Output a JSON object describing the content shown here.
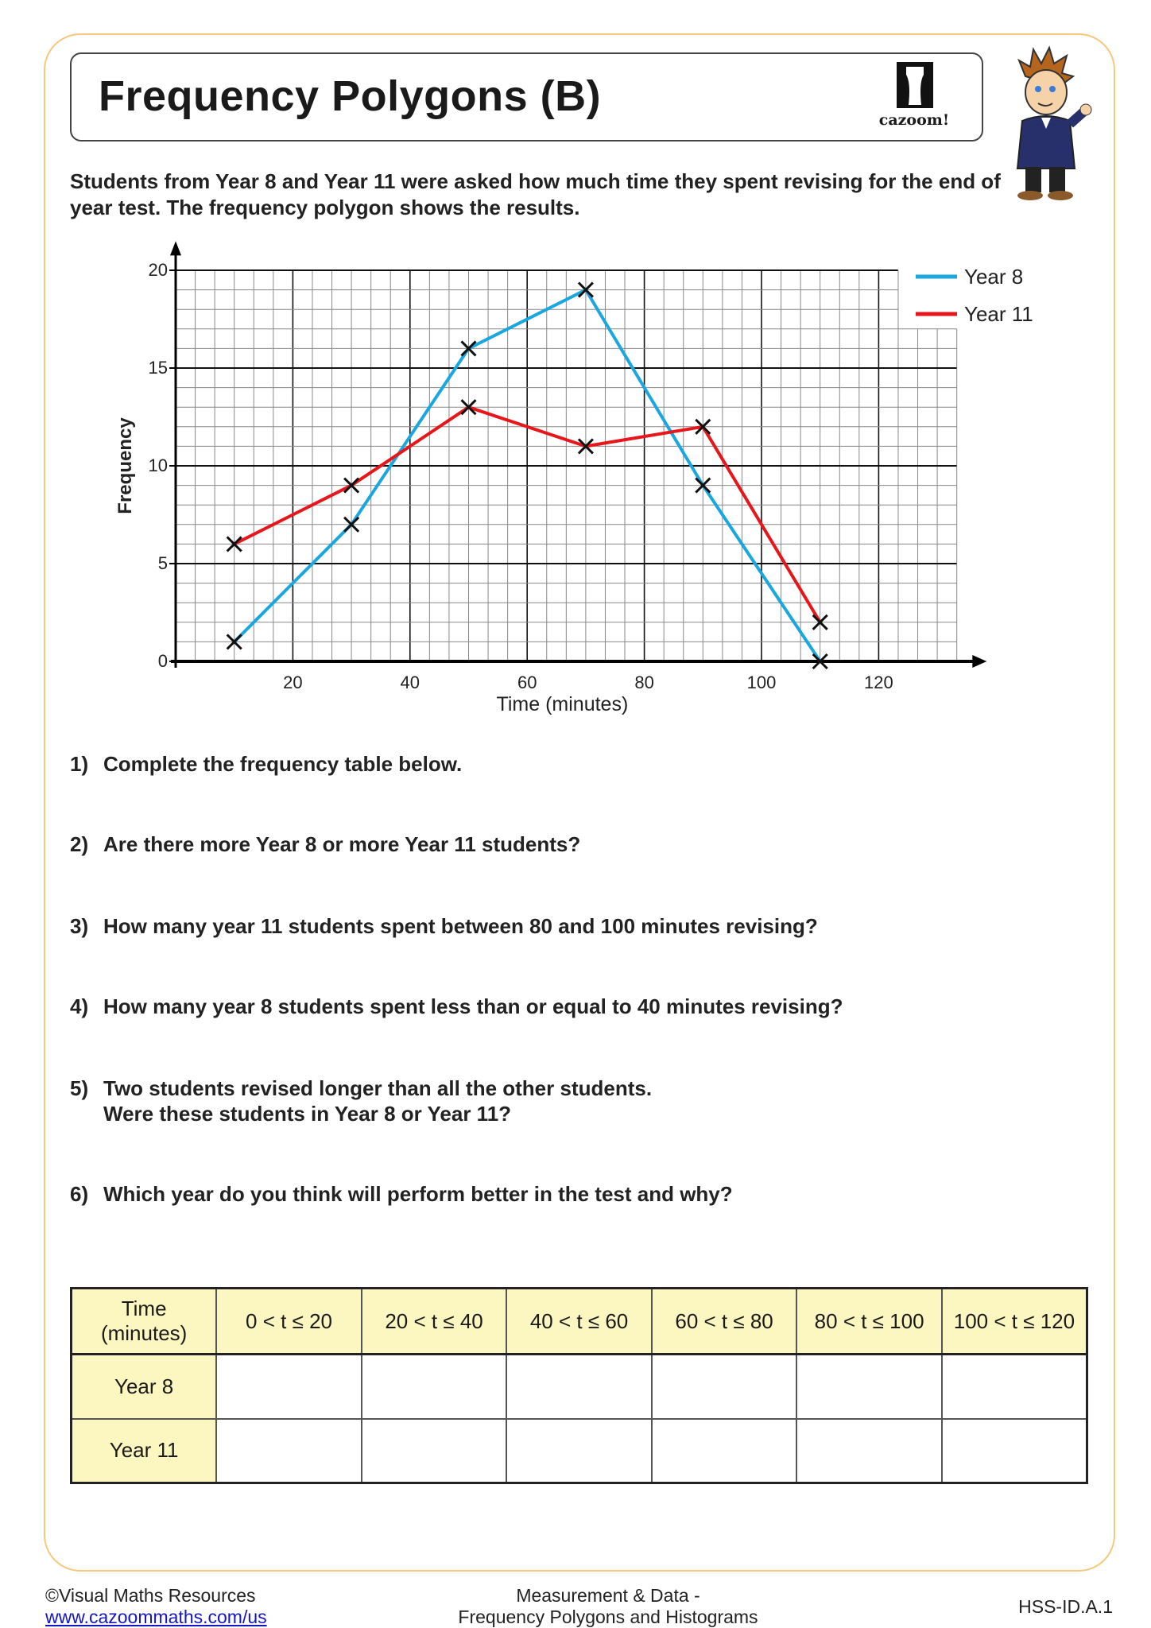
{
  "header": {
    "title": "Frequency Polygons (B)",
    "logo_text": "cazoom!"
  },
  "intro": "Students from Year 8 and Year 11 were asked how much time they spent revising for the end of year test. The frequency polygon shows the results.",
  "chart_data": {
    "type": "line",
    "xlabel": "Time (minutes)",
    "ylabel": "Frequency",
    "xlim": [
      0,
      133
    ],
    "ylim": [
      0,
      20
    ],
    "xticks": [
      20,
      40,
      60,
      80,
      100,
      120
    ],
    "yticks": [
      0,
      5,
      10,
      15,
      20
    ],
    "grid": true,
    "legend_placement": "top-right",
    "markers": "cross",
    "series": [
      {
        "name": "Year 8",
        "color": "#1aa7e0",
        "x": [
          10,
          30,
          50,
          70,
          90,
          110
        ],
        "y": [
          1,
          7,
          16,
          19,
          9,
          0
        ]
      },
      {
        "name": "Year 11",
        "color": "#e8161b",
        "x": [
          10,
          30,
          50,
          70,
          90,
          110
        ],
        "y": [
          6,
          9,
          13,
          11,
          12,
          2
        ]
      }
    ]
  },
  "questions": [
    {
      "num": "1)",
      "text": "Complete the frequency table below."
    },
    {
      "num": "2)",
      "text": "Are there more Year 8 or more Year 11 students?"
    },
    {
      "num": "3)",
      "text": "How many year 11 students spent between 80 and 100 minutes revising?"
    },
    {
      "num": "4)",
      "text": "How many year 8 students spent less than or equal to 40 minutes revising?"
    },
    {
      "num": "5)",
      "text": "Two students revised longer than all the other students.",
      "text2": "Were these students in Year 8 or Year 11?"
    },
    {
      "num": "6)",
      "text": "Which year do you think will perform better in the test and why?"
    }
  ],
  "table": {
    "header_label_line1": "Time",
    "header_label_line2": "(minutes)",
    "columns": [
      "0 < t ≤ 20",
      "20 < t ≤ 40",
      "40 < t ≤ 60",
      "60 < t ≤ 80",
      "80 < t ≤ 100",
      "100 < t ≤ 120"
    ],
    "rows": [
      "Year 8",
      "Year 11"
    ]
  },
  "footer": {
    "copyright": "©Visual Maths Resources",
    "link": "www.cazoommaths.com/us",
    "topic_line1": "Measurement & Data -",
    "topic_line2": "Frequency Polygons and Histograms",
    "standard": "HSS-ID.A.1"
  }
}
